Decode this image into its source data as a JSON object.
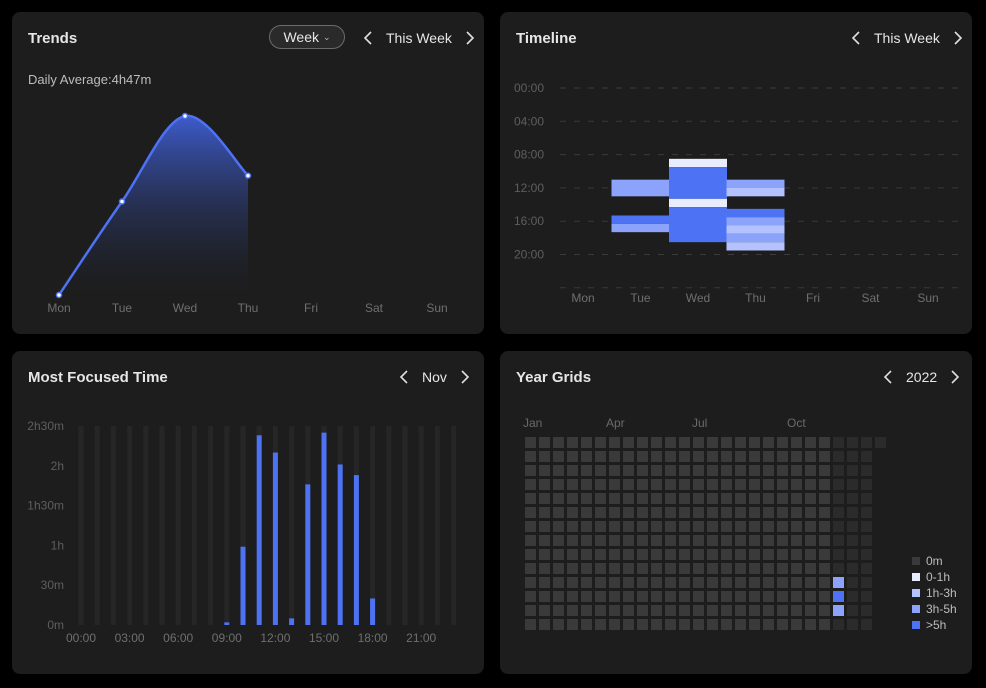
{
  "trends": {
    "title": "Trends",
    "range_select": "Week",
    "period_label": "This Week",
    "daily_average": "Daily Average:4h47m",
    "chart_data": {
      "type": "area",
      "categories": [
        "Mon",
        "Tue",
        "Wed",
        "Thu",
        "Fri",
        "Sat",
        "Sun"
      ],
      "series": [
        {
          "values": [
            0,
            2.35,
            4.5,
            3.0,
            null,
            null,
            null
          ]
        }
      ],
      "ylim": [
        0,
        4.8
      ]
    },
    "colors": {
      "line": "#4d72f4",
      "fill_top": "#3f5fd6",
      "fill_bottom": "#1d1d1d"
    }
  },
  "timeline": {
    "title": "Timeline",
    "period_label": "This Week",
    "chart_data": {
      "type": "heatmap",
      "y_ticks": [
        "00:00",
        "04:00",
        "08:00",
        "12:00",
        "16:00",
        "20:00"
      ],
      "categories": [
        "Mon",
        "Tue",
        "Wed",
        "Thu",
        "Fri",
        "Sat",
        "Sun"
      ],
      "ylim": [
        0,
        24
      ],
      "blocks": [
        {
          "day": "Tue",
          "start": 11,
          "end": 13,
          "level": "3h-5h"
        },
        {
          "day": "Tue",
          "start": 15.3,
          "end": 16.3,
          "level": ">5h"
        },
        {
          "day": "Tue",
          "start": 16.3,
          "end": 17.3,
          "level": "3h-5h"
        },
        {
          "day": "Wed",
          "start": 8.5,
          "end": 9.5,
          "level": "0-1h"
        },
        {
          "day": "Wed",
          "start": 9.5,
          "end": 13.3,
          "level": ">5h"
        },
        {
          "day": "Wed",
          "start": 13.3,
          "end": 14.3,
          "level": "0-1h"
        },
        {
          "day": "Wed",
          "start": 14.3,
          "end": 18.5,
          "level": ">5h"
        },
        {
          "day": "Thu",
          "start": 11,
          "end": 12,
          "level": "3h-5h"
        },
        {
          "day": "Thu",
          "start": 12,
          "end": 13,
          "level": "1h-3h"
        },
        {
          "day": "Thu",
          "start": 14.5,
          "end": 15.5,
          "level": ">5h"
        },
        {
          "day": "Thu",
          "start": 15.5,
          "end": 16.5,
          "level": "3h-5h"
        },
        {
          "day": "Thu",
          "start": 16.5,
          "end": 17.5,
          "level": "1h-3h"
        },
        {
          "day": "Thu",
          "start": 17.5,
          "end": 18.5,
          "level": "3h-5h"
        },
        {
          "day": "Thu",
          "start": 18.5,
          "end": 19.5,
          "level": "1h-3h"
        }
      ]
    }
  },
  "focused": {
    "title": "Most Focused Time",
    "period_label": "Nov",
    "chart_data": {
      "type": "bar",
      "y_ticks": [
        "0m",
        "30m",
        "1h",
        "1h30m",
        "2h",
        "2h30m"
      ],
      "ylim": [
        0,
        150
      ],
      "x_ticks": [
        "00:00",
        "03:00",
        "06:00",
        "09:00",
        "12:00",
        "15:00",
        "18:00",
        "21:00"
      ],
      "categories": [
        "00",
        "01",
        "02",
        "03",
        "04",
        "05",
        "06",
        "07",
        "08",
        "09",
        "10",
        "11",
        "12",
        "13",
        "14",
        "15",
        "16",
        "17",
        "18",
        "19",
        "20",
        "21",
        "22",
        "23"
      ],
      "values": [
        0,
        0,
        0,
        0,
        0,
        0,
        0,
        0,
        0,
        2,
        59,
        143,
        130,
        5,
        106,
        145,
        121,
        113,
        20,
        0,
        0,
        0,
        0,
        0
      ]
    }
  },
  "yeargrid": {
    "title": "Year Grids",
    "period_label": "2022",
    "months": [
      "Jan",
      "Apr",
      "Jul",
      "Oct"
    ],
    "legend": [
      {
        "label": "0m",
        "color": "#3a3a3a"
      },
      {
        "label": "0-1h",
        "color": "#e8ecff"
      },
      {
        "label": "1h-3h",
        "color": "#b4c3ff"
      },
      {
        "label": "3h-5h",
        "color": "#8ca3fb"
      },
      {
        "label": ">5h",
        "color": "#4d72f4"
      }
    ],
    "active_days": [
      {
        "week": 44,
        "day": 10,
        "level": "3h-5h"
      },
      {
        "week": 44,
        "day": 11,
        "level": ">5h"
      },
      {
        "week": 44,
        "day": 12,
        "level": "3h-5h"
      }
    ]
  }
}
